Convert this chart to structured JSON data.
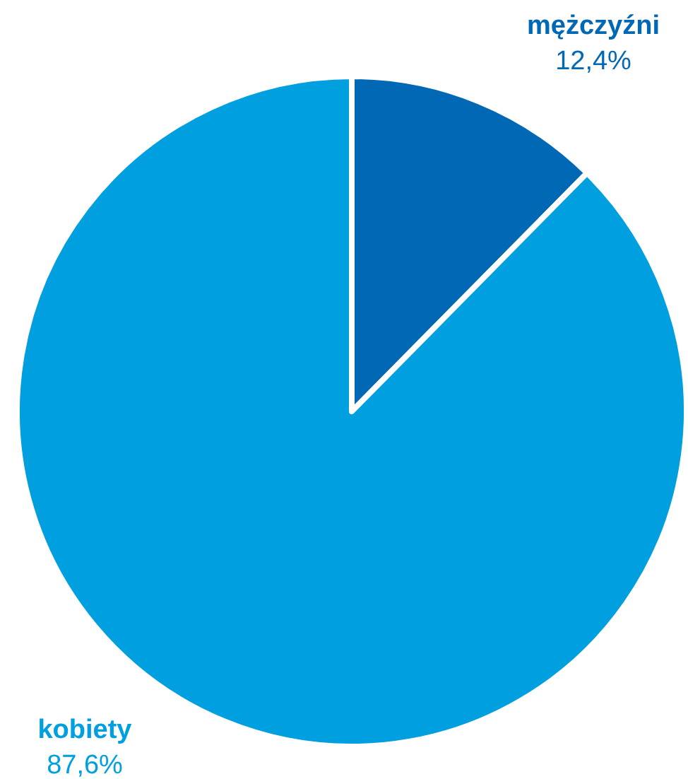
{
  "chart_data": {
    "type": "pie",
    "categories": [
      "mężczyźni",
      "kobiety"
    ],
    "values": [
      12.4,
      87.6
    ],
    "colors": [
      "#0068b4",
      "#009fe0"
    ],
    "value_labels": [
      "12,4%",
      "87,6%"
    ]
  }
}
